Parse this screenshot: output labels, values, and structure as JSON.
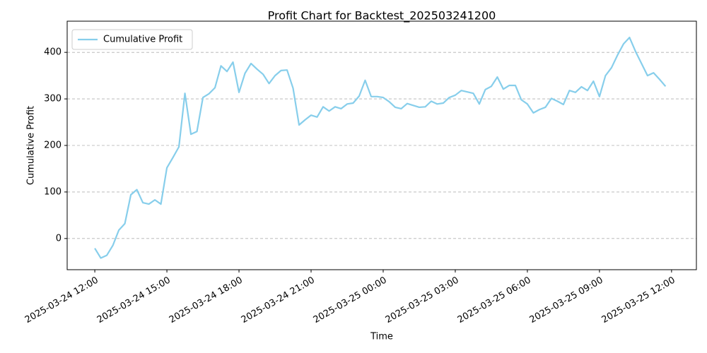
{
  "chart_data": {
    "type": "line",
    "title": "Profit Chart for Backtest_202503241200",
    "xlabel": "Time",
    "ylabel": "Cumulative Profit",
    "x": [
      "2025-03-24 12:00",
      "2025-03-24 12:15",
      "2025-03-24 12:30",
      "2025-03-24 12:45",
      "2025-03-24 13:00",
      "2025-03-24 13:15",
      "2025-03-24 13:30",
      "2025-03-24 13:45",
      "2025-03-24 14:00",
      "2025-03-24 14:15",
      "2025-03-24 14:30",
      "2025-03-24 14:45",
      "2025-03-24 15:00",
      "2025-03-24 15:15",
      "2025-03-24 15:30",
      "2025-03-24 15:45",
      "2025-03-24 16:00",
      "2025-03-24 16:15",
      "2025-03-24 16:30",
      "2025-03-24 16:45",
      "2025-03-24 17:00",
      "2025-03-24 17:15",
      "2025-03-24 17:30",
      "2025-03-24 17:45",
      "2025-03-24 18:00",
      "2025-03-24 18:15",
      "2025-03-24 18:30",
      "2025-03-24 18:45",
      "2025-03-24 19:00",
      "2025-03-24 19:15",
      "2025-03-24 19:30",
      "2025-03-24 19:45",
      "2025-03-24 20:00",
      "2025-03-24 20:15",
      "2025-03-24 20:30",
      "2025-03-24 20:45",
      "2025-03-24 21:00",
      "2025-03-24 21:15",
      "2025-03-24 21:30",
      "2025-03-24 21:45",
      "2025-03-24 22:00",
      "2025-03-24 22:15",
      "2025-03-24 22:30",
      "2025-03-24 22:45",
      "2025-03-24 23:00",
      "2025-03-24 23:15",
      "2025-03-24 23:30",
      "2025-03-24 23:45",
      "2025-03-25 00:00",
      "2025-03-25 00:15",
      "2025-03-25 00:30",
      "2025-03-25 00:45",
      "2025-03-25 01:00",
      "2025-03-25 01:15",
      "2025-03-25 01:30",
      "2025-03-25 01:45",
      "2025-03-25 02:00",
      "2025-03-25 02:15",
      "2025-03-25 02:30",
      "2025-03-25 02:45",
      "2025-03-25 03:00",
      "2025-03-25 03:15",
      "2025-03-25 03:30",
      "2025-03-25 03:45",
      "2025-03-25 04:00",
      "2025-03-25 04:15",
      "2025-03-25 04:30",
      "2025-03-25 04:45",
      "2025-03-25 05:00",
      "2025-03-25 05:15",
      "2025-03-25 05:30",
      "2025-03-25 05:45",
      "2025-03-25 06:00",
      "2025-03-25 06:15",
      "2025-03-25 06:30",
      "2025-03-25 06:45",
      "2025-03-25 07:00",
      "2025-03-25 07:15",
      "2025-03-25 07:30",
      "2025-03-25 07:45",
      "2025-03-25 08:00",
      "2025-03-25 08:15",
      "2025-03-25 08:30",
      "2025-03-25 08:45",
      "2025-03-25 09:00",
      "2025-03-25 09:15",
      "2025-03-25 09:30",
      "2025-03-25 09:45",
      "2025-03-25 10:00",
      "2025-03-25 10:15",
      "2025-03-25 10:30",
      "2025-03-25 10:45",
      "2025-03-25 11:00",
      "2025-03-25 11:15",
      "2025-03-25 11:30",
      "2025-03-25 11:45"
    ],
    "series": [
      {
        "name": "Cumulative Profit",
        "color": "#87ceeb",
        "values": [
          -21,
          -42,
          -36,
          -15,
          18,
          32,
          94,
          105,
          77,
          74,
          83,
          74,
          152,
          174,
          197,
          312,
          224,
          230,
          303,
          311,
          324,
          371,
          359,
          379,
          314,
          355,
          376,
          364,
          353,
          333,
          350,
          361,
          362,
          323,
          244,
          255,
          265,
          261,
          283,
          274,
          283,
          279,
          289,
          291,
          306,
          340,
          305,
          305,
          303,
          294,
          282,
          279,
          290,
          286,
          282,
          283,
          295,
          289,
          291,
          303,
          308,
          318,
          315,
          312,
          289,
          320,
          327,
          347,
          321,
          329,
          329,
          298,
          289,
          270,
          277,
          282,
          301,
          295,
          288,
          318,
          314,
          326,
          318,
          338,
          305,
          350,
          367,
          394,
          418,
          432,
          402,
          376,
          350,
          356,
          342,
          327
        ]
      }
    ],
    "xlim": [
      "2025-03-24 10:51",
      "2025-03-25 13:02"
    ],
    "xticks": [
      "2025-03-24 12:00",
      "2025-03-24 15:00",
      "2025-03-24 18:00",
      "2025-03-24 21:00",
      "2025-03-25 00:00",
      "2025-03-25 03:00",
      "2025-03-25 06:00",
      "2025-03-25 09:00",
      "2025-03-25 12:00"
    ],
    "ylim": [
      -67,
      467
    ],
    "yticks": [
      0,
      100,
      200,
      300,
      400
    ],
    "grid": true,
    "legend": "upper left"
  }
}
